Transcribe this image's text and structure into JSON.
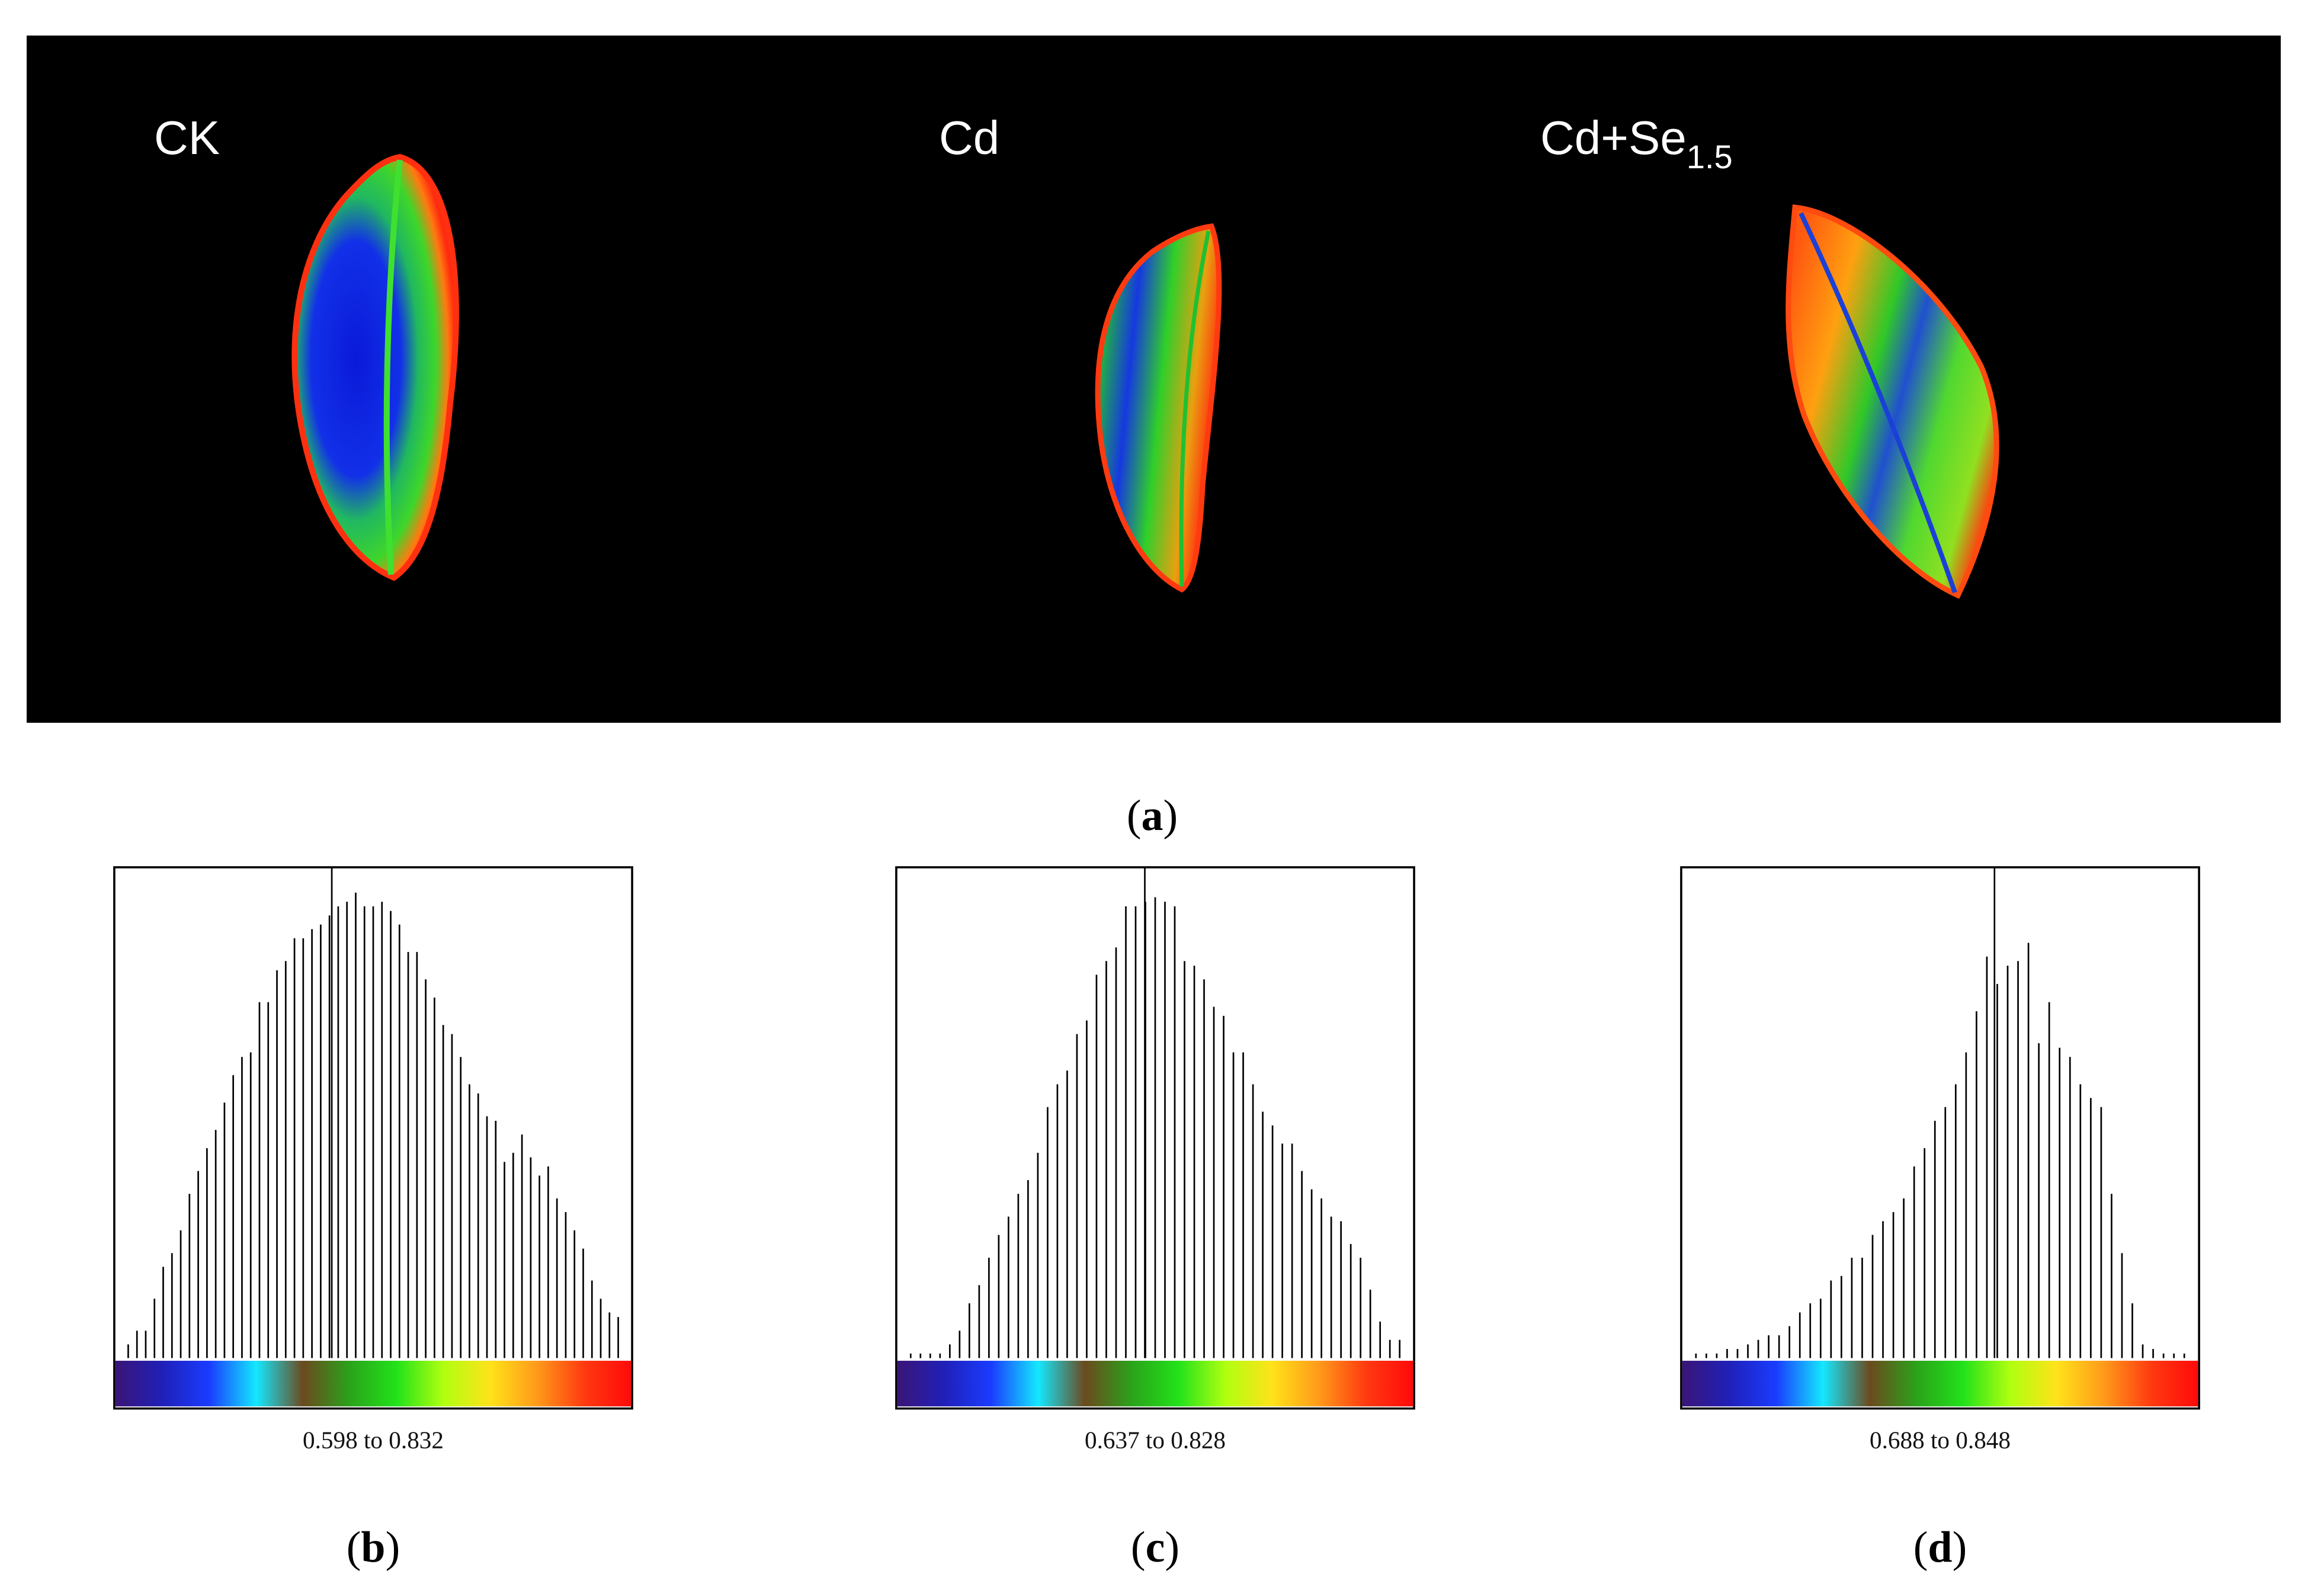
{
  "panel_a": {
    "caption": "a",
    "leaves": [
      {
        "label": "CK",
        "sub": ""
      },
      {
        "label": "Cd",
        "sub": ""
      },
      {
        "label": "Cd+Se",
        "sub": "1.5"
      }
    ]
  },
  "colors": {
    "bar": "#000000",
    "frame": "#000000",
    "gradient": [
      "#3a1577",
      "#2020b8",
      "#1a3cff",
      "#14e8ff",
      "#6b4a1e",
      "#2aa31a",
      "#22e21a",
      "#b0ff10",
      "#ffe21a",
      "#ff9a1a",
      "#ff3a10",
      "#ff0a0a"
    ]
  },
  "chart_data": [
    {
      "type": "histogram",
      "caption": "b",
      "range_text": "0.598 to 0.832",
      "range": [
        0.598,
        0.832
      ],
      "ylim": [
        0,
        100
      ],
      "mean_marker": 0.42,
      "values": [
        3,
        6,
        6,
        13,
        20,
        23,
        28,
        36,
        41,
        46,
        50,
        56,
        62,
        66,
        67,
        78,
        78,
        85,
        87,
        92,
        92,
        94,
        95,
        97,
        99,
        100,
        102,
        99,
        99,
        100,
        98,
        95,
        89,
        89,
        83,
        79,
        73,
        71,
        66,
        60,
        58,
        53,
        52,
        43,
        45,
        49,
        44,
        40,
        42,
        35,
        32,
        28,
        24,
        17,
        13,
        10,
        9
      ]
    },
    {
      "type": "histogram",
      "caption": "c",
      "range_text": "0.637 to 0.828",
      "range": [
        0.637,
        0.828
      ],
      "ylim": [
        0,
        100
      ],
      "mean_marker": 0.48,
      "values": [
        1,
        1,
        1,
        1,
        3,
        6,
        12,
        16,
        22,
        27,
        31,
        36,
        39,
        45,
        55,
        60,
        63,
        71,
        74,
        84,
        87,
        90,
        99,
        99,
        100,
        101,
        100,
        99,
        87,
        86,
        83,
        77,
        75,
        67,
        67,
        60,
        54,
        51,
        47,
        47,
        41,
        37,
        35,
        31,
        30,
        25,
        22,
        15,
        8,
        4,
        4
      ]
    },
    {
      "type": "histogram",
      "caption": "d",
      "range_text": "0.688 to 0.848",
      "range": [
        0.688,
        0.848
      ],
      "ylim": [
        0,
        100
      ],
      "mean_marker": 0.605,
      "values": [
        1,
        1,
        1,
        2,
        2,
        3,
        4,
        5,
        5,
        7,
        10,
        12,
        13,
        17,
        18,
        22,
        22,
        27,
        30,
        32,
        35,
        42,
        46,
        52,
        55,
        60,
        67,
        76,
        88,
        82,
        86,
        87,
        91,
        69,
        78,
        68,
        66,
        60,
        57,
        55,
        36,
        23,
        12,
        3,
        2,
        1,
        1,
        1
      ]
    }
  ]
}
